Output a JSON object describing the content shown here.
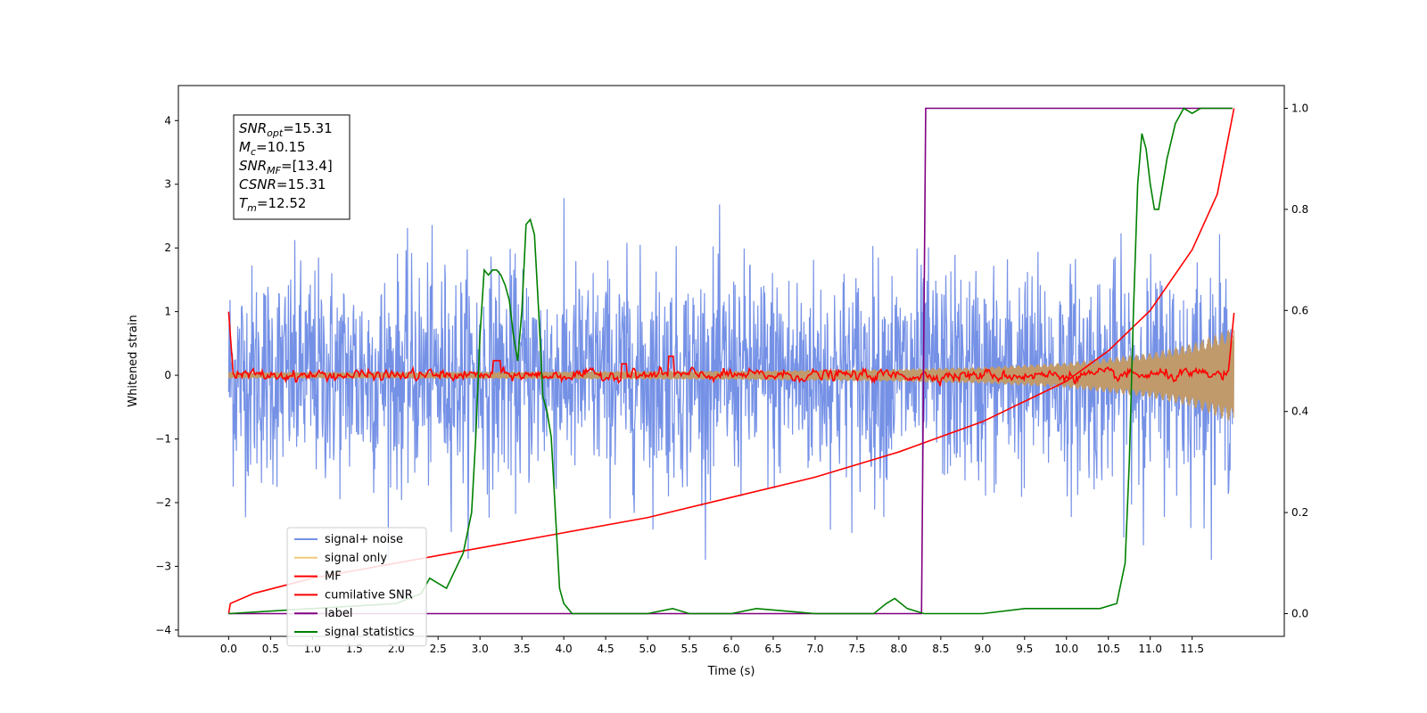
{
  "chart_data": {
    "type": "line",
    "xlabel": "Time (s)",
    "ylabel": "Whitened strain",
    "y2label": "",
    "xlim": [
      -0.6,
      12.6
    ],
    "ylim": [
      -4.1,
      4.55
    ],
    "y2lim": [
      -0.045,
      1.045
    ],
    "x_ticks": [
      "0.0",
      "0.5",
      "1.0",
      "1.5",
      "2.0",
      "2.5",
      "3.0",
      "3.5",
      "4.0",
      "4.5",
      "5.0",
      "5.5",
      "6.0",
      "6.5",
      "7.0",
      "7.5",
      "8.0",
      "8.5",
      "9.0",
      "9.5",
      "10.0",
      "10.5",
      "11.0",
      "11.5"
    ],
    "y_ticks": [
      "4",
      "3",
      "2",
      "1",
      "0",
      "−1",
      "−2",
      "−3",
      "−4"
    ],
    "y2_ticks": [
      "1.0",
      "0.8",
      "0.6",
      "0.4",
      "0.2",
      "0.0"
    ],
    "annotation": {
      "lines": [
        {
          "sym": "SNR",
          "sub": "opt",
          "value": "=15.31"
        },
        {
          "sym": "M",
          "sub": "c",
          "value": "=10.15"
        },
        {
          "sym": "SNR",
          "sub": "MF",
          "value": "=[13.4]"
        },
        {
          "sym": "CSNR",
          "sub": "",
          "value": "=15.31"
        },
        {
          "sym": "T",
          "sub": "m",
          "value": "=12.52"
        }
      ]
    },
    "legend_position": "lower-left",
    "series": [
      {
        "name": "signal+ noise",
        "color": "#7591e6",
        "axis": "left",
        "kind": "noise",
        "x_range": [
          0,
          11.98
        ],
        "std": 0.85,
        "range": [
          -2.9,
          3.2
        ]
      },
      {
        "name": "signal only",
        "color": "#f2c97d",
        "axis": "left",
        "kind": "chirp",
        "x_range": [
          0,
          12.0
        ],
        "envelope_x": [
          0,
          2,
          4,
          6,
          8,
          9,
          10,
          11,
          11.5,
          12.0
        ],
        "envelope_y": [
          0.05,
          0.05,
          0.06,
          0.07,
          0.1,
          0.13,
          0.2,
          0.35,
          0.5,
          0.75
        ]
      },
      {
        "name": "MF",
        "color": "#ff0000",
        "axis": "left",
        "kind": "filter",
        "x_range": [
          0,
          12.0
        ],
        "points_x": [
          0.0,
          0.05,
          3.1,
          3.25,
          4.7,
          5.0,
          5.3,
          11.95,
          12.0
        ],
        "points_y": [
          1.0,
          0.15,
          0.2,
          0.25,
          0.2,
          0.2,
          0.32,
          0.15,
          0.98
        ]
      },
      {
        "name": "cumilative SNR",
        "color": "#ff0000",
        "axis": "right",
        "x": [
          0.0,
          0.02,
          0.3,
          1.0,
          2.0,
          3.0,
          4.0,
          5.0,
          6.0,
          7.0,
          8.0,
          8.5,
          9.0,
          9.5,
          10.0,
          10.5,
          11.0,
          11.5,
          11.8,
          12.0
        ],
        "y": [
          0.0,
          0.02,
          0.04,
          0.07,
          0.1,
          0.13,
          0.16,
          0.19,
          0.23,
          0.27,
          0.32,
          0.35,
          0.38,
          0.42,
          0.46,
          0.52,
          0.6,
          0.72,
          0.83,
          1.0
        ]
      },
      {
        "name": "label",
        "color": "#800080",
        "axis": "right",
        "x": [
          0.0,
          8.27,
          8.32,
          11.98
        ],
        "y": [
          0.0,
          0.0,
          1.0,
          1.0
        ]
      },
      {
        "name": "signal statistics",
        "color": "#008000",
        "axis": "right",
        "x": [
          0.0,
          1.0,
          2.0,
          2.3,
          2.4,
          2.6,
          2.8,
          2.9,
          2.95,
          3.0,
          3.05,
          3.1,
          3.15,
          3.2,
          3.25,
          3.3,
          3.35,
          3.4,
          3.45,
          3.5,
          3.55,
          3.6,
          3.65,
          3.7,
          3.75,
          3.8,
          3.85,
          3.9,
          3.95,
          4.0,
          4.1,
          4.2,
          4.5,
          5.0,
          5.3,
          5.5,
          6.0,
          6.3,
          7.0,
          7.7,
          7.85,
          7.95,
          8.1,
          8.3,
          9.0,
          9.5,
          10.0,
          10.4,
          10.6,
          10.7,
          10.75,
          10.8,
          10.85,
          10.9,
          10.95,
          11.0,
          11.05,
          11.1,
          11.2,
          11.3,
          11.4,
          11.5,
          11.6,
          11.98
        ],
        "y": [
          0.0,
          0.01,
          0.02,
          0.04,
          0.07,
          0.05,
          0.12,
          0.2,
          0.35,
          0.55,
          0.68,
          0.67,
          0.68,
          0.68,
          0.67,
          0.65,
          0.62,
          0.55,
          0.5,
          0.6,
          0.77,
          0.78,
          0.75,
          0.6,
          0.43,
          0.4,
          0.35,
          0.2,
          0.05,
          0.02,
          0.0,
          0.0,
          0.0,
          0.0,
          0.01,
          0.0,
          0.0,
          0.01,
          0.0,
          0.0,
          0.02,
          0.03,
          0.01,
          0.0,
          0.0,
          0.01,
          0.01,
          0.01,
          0.02,
          0.1,
          0.3,
          0.6,
          0.85,
          0.95,
          0.92,
          0.85,
          0.8,
          0.8,
          0.9,
          0.97,
          1.0,
          0.99,
          1.0,
          1.0
        ]
      }
    ]
  }
}
